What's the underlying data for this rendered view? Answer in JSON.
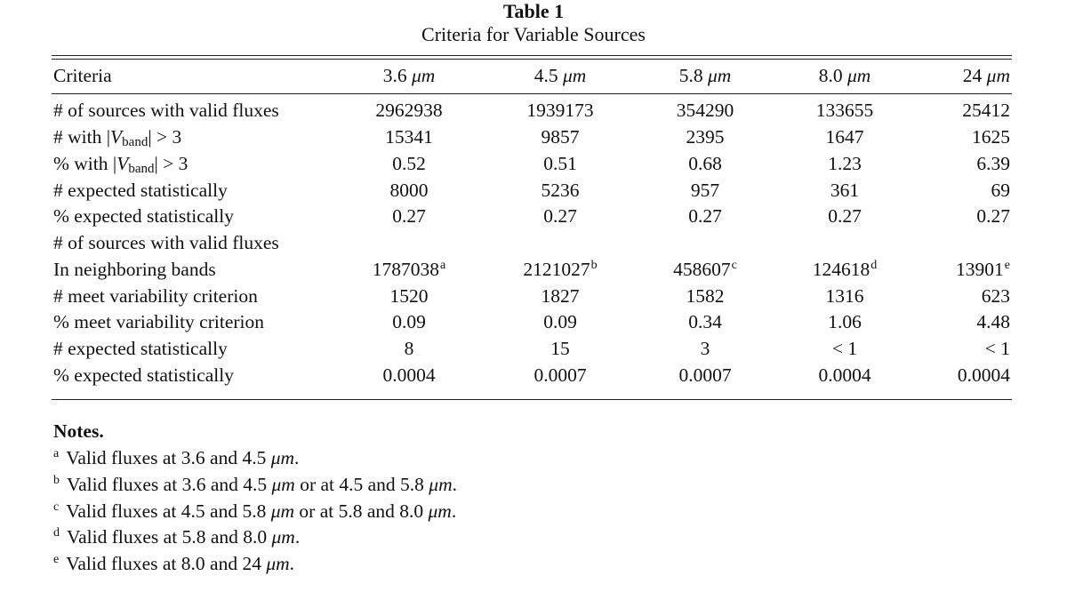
{
  "table": {
    "title": "Table 1",
    "subtitle": "Criteria for Variable Sources",
    "header": {
      "criteria": "Criteria",
      "cols": [
        {
          "num": "3.6",
          "unit": "μm"
        },
        {
          "num": "4.5",
          "unit": "μm"
        },
        {
          "num": "5.8",
          "unit": "μm"
        },
        {
          "num": "8.0",
          "unit": "μm"
        },
        {
          "num": "24",
          "unit": "μm"
        }
      ]
    },
    "rows": [
      {
        "label": "# of sources with valid fluxes",
        "values": [
          "2962938",
          "1939173",
          "354290",
          "133655",
          "25412"
        ]
      },
      {
        "label_pre": "# with |",
        "label_var": "V",
        "label_sub": "band",
        "label_post": "| > 3",
        "values": [
          "15341",
          "9857",
          "2395",
          "1647",
          "1625"
        ]
      },
      {
        "label_pre": "% with |",
        "label_var": "V",
        "label_sub": "band",
        "label_post": "| > 3",
        "values": [
          "0.52",
          "0.51",
          "0.68",
          "1.23",
          "6.39"
        ]
      },
      {
        "label": "# expected statistically",
        "values": [
          "8000",
          "5236",
          "957",
          "361",
          "69"
        ]
      },
      {
        "label": "% expected statistically",
        "values": [
          "0.27",
          "0.27",
          "0.27",
          "0.27",
          "0.27"
        ]
      },
      {
        "label": "# of sources with valid fluxes",
        "values": [
          "",
          "",
          "",
          "",
          ""
        ]
      },
      {
        "label": "In neighboring bands",
        "values": [
          "1787038",
          "2121027",
          "458607",
          "124618",
          "13901"
        ],
        "footnotes": [
          "a",
          "b",
          "c",
          "d",
          "e"
        ]
      },
      {
        "label": "# meet variability criterion",
        "values": [
          "1520",
          "1827",
          "1582",
          "1316",
          "623"
        ]
      },
      {
        "label": "% meet variability criterion",
        "values": [
          "0.09",
          "0.09",
          "0.34",
          "1.06",
          "4.48"
        ]
      },
      {
        "label": "# expected statistically",
        "values": [
          "8",
          "15",
          "3",
          "< 1",
          "< 1"
        ]
      },
      {
        "label": "% expected statistically",
        "values": [
          "0.0004",
          "0.0007",
          "0.0007",
          "0.0004",
          "0.0004"
        ]
      }
    ]
  },
  "notes": {
    "heading": "Notes.",
    "items": [
      {
        "mark": "a",
        "text": "Valid fluxes at 3.6 and 4.5 ",
        "unit": "μm",
        "tail": "."
      },
      {
        "mark": "b",
        "text": "Valid fluxes at 3.6 and 4.5 ",
        "unit": "μm",
        "mid": " or at 4.5 and 5.8 ",
        "unit2": "μm",
        "tail": "."
      },
      {
        "mark": "c",
        "text": "Valid fluxes at 4.5 and 5.8 ",
        "unit": "μm",
        "mid": " or at 5.8 and 8.0 ",
        "unit2": "μm",
        "tail": "."
      },
      {
        "mark": "d",
        "text": "Valid fluxes at 5.8 and 8.0 ",
        "unit": "μm",
        "tail": "."
      },
      {
        "mark": "e",
        "text": "Valid fluxes at 8.0 and 24 ",
        "unit": "μm",
        "tail": "."
      }
    ]
  }
}
